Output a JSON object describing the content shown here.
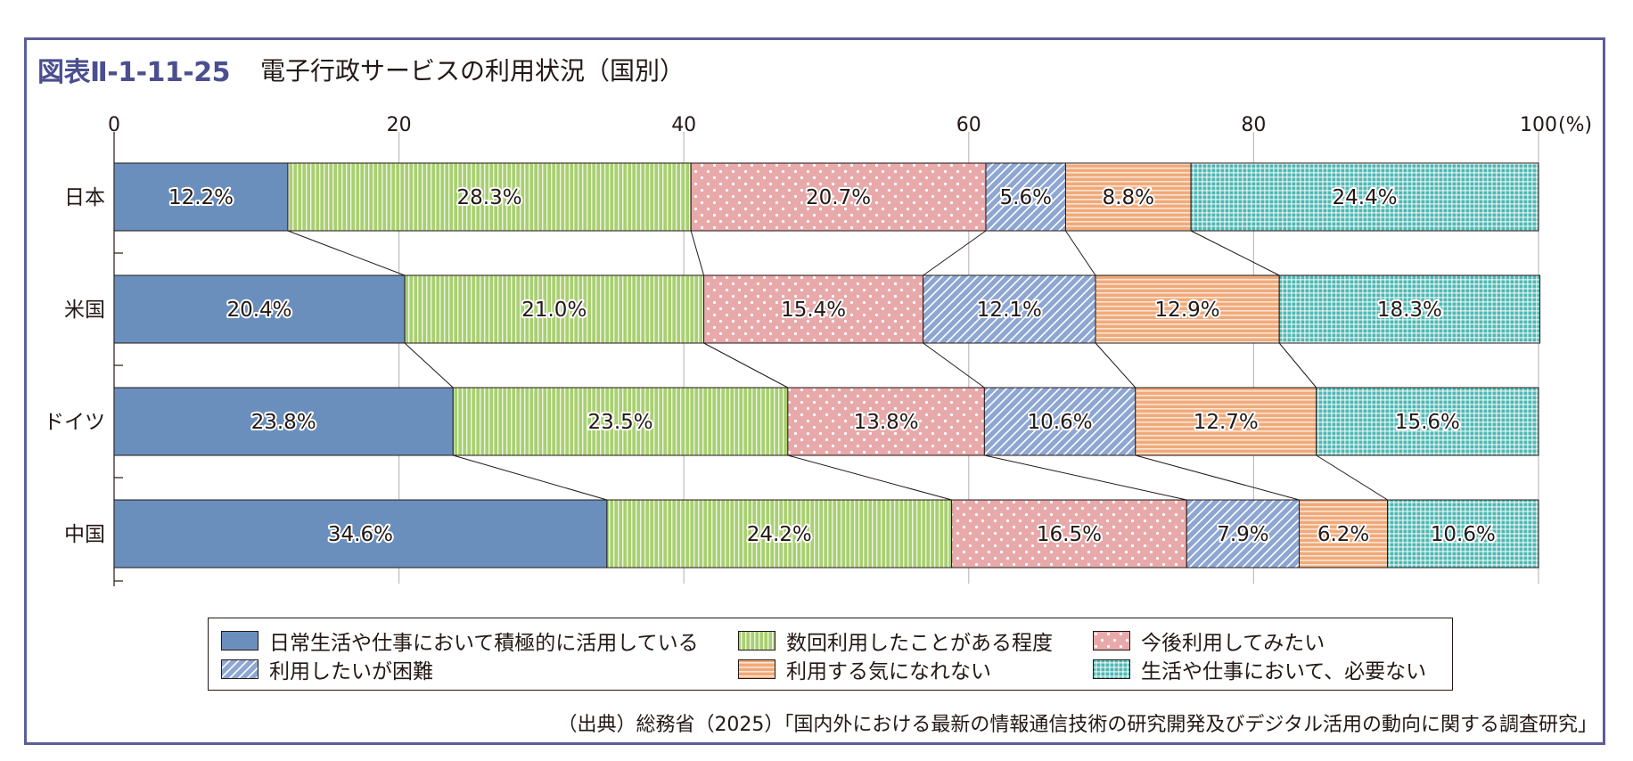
{
  "header": {
    "figure_number": "図表Ⅱ-1-11-25",
    "title": "電子行政サービスの利用状況（国別）"
  },
  "chart_data": {
    "type": "bar",
    "orientation": "horizontal",
    "stacked": true,
    "percent_stacked": true,
    "unit_label": "(%)",
    "xlim": [
      0,
      100
    ],
    "x_ticks": [
      "0",
      "20",
      "40",
      "60",
      "80",
      "100"
    ],
    "grid": true,
    "connector_lines": true,
    "categories": [
      "日本",
      "米国",
      "ドイツ",
      "中国"
    ],
    "series": [
      {
        "name": "日常生活や仕事において積極的に活用している",
        "color": "#6a8fbd",
        "pattern": "solid",
        "values": [
          12.2,
          20.4,
          23.8,
          34.6
        ],
        "labels": [
          "12.2%",
          "20.4%",
          "23.8%",
          "34.6%"
        ]
      },
      {
        "name": "数回利用したことがある程度",
        "color": "#a9cf72",
        "pattern": "vertical-stripes",
        "values": [
          28.3,
          21.0,
          23.5,
          24.2
        ],
        "labels": [
          "28.3%",
          "21.0%",
          "23.5%",
          "24.2%"
        ]
      },
      {
        "name": "今後利用してみたい",
        "color": "#e8a9aa",
        "pattern": "dots",
        "values": [
          20.7,
          15.4,
          13.8,
          16.5
        ],
        "labels": [
          "20.7%",
          "15.4%",
          "13.8%",
          "16.5%"
        ]
      },
      {
        "name": "利用したいが困難",
        "color": "#8ea6d2",
        "pattern": "diagonal-stripes",
        "values": [
          5.6,
          12.1,
          10.6,
          7.9
        ],
        "labels": [
          "5.6%",
          "12.1%",
          "10.6%",
          "7.9%"
        ]
      },
      {
        "name": "利用する気になれない",
        "color": "#f0aa7a",
        "pattern": "horizontal-stripes",
        "values": [
          8.8,
          12.9,
          12.7,
          6.2
        ],
        "labels": [
          "8.8%",
          "12.9%",
          "12.7%",
          "6.2%"
        ]
      },
      {
        "name": "生活や仕事において、必要ない",
        "color": "#4fb8b3",
        "pattern": "grid",
        "values": [
          24.4,
          18.3,
          15.6,
          10.6
        ],
        "labels": [
          "24.4%",
          "18.3%",
          "15.6%",
          "10.6%"
        ]
      }
    ],
    "legend_position": "bottom"
  },
  "footer": {
    "source": "（出典）総務省（2025）「国内外における最新の情報通信技術の研究開発及びデジタル活用の動向に関する調査研究」"
  },
  "colors": {
    "frame_border": "#5a5e99",
    "figure_number": "#4b4f8f"
  }
}
